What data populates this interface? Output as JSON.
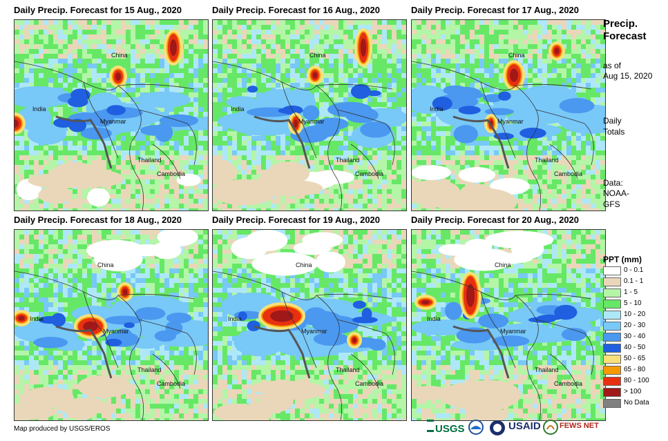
{
  "panels": [
    {
      "title": "Daily Precip. Forecast for 15 Aug., 2020"
    },
    {
      "title": "Daily Precip. Forecast for 16 Aug., 2020"
    },
    {
      "title": "Daily Precip. Forecast for 17 Aug., 2020"
    },
    {
      "title": "Daily Precip. Forecast for 18 Aug., 2020"
    },
    {
      "title": "Daily Precip. Forecast for 19 Aug., 2020"
    },
    {
      "title": "Daily Precip. Forecast for 20 Aug., 2020"
    }
  ],
  "places": {
    "china": "China",
    "india": "India",
    "myanmar": "Myanmar",
    "thailand": "Thailand",
    "cambodia": "Cambodia"
  },
  "side": {
    "title": "Precip. Forecast",
    "as_of": "as of",
    "date": "Aug 15, 2020",
    "daily": "Daily",
    "totals": "Totals",
    "data_label": "Data:",
    "data_src1": "NOAA-",
    "data_src2": "GFS"
  },
  "legend": {
    "title": "PPT (mm)",
    "classes": [
      {
        "label": "0 - 0.1",
        "color": "#ffffff"
      },
      {
        "label": "0.1 - 1",
        "color": "#ead7b9"
      },
      {
        "label": "1 - 5",
        "color": "#b4f5a8"
      },
      {
        "label": "5 - 10",
        "color": "#66e866"
      },
      {
        "label": "10 - 20",
        "color": "#aee8f8"
      },
      {
        "label": "20 - 30",
        "color": "#78c8f8"
      },
      {
        "label": "30 - 40",
        "color": "#4a98ef"
      },
      {
        "label": "40 - 50",
        "color": "#1f5fe0"
      },
      {
        "label": "50 - 65",
        "color": "#f8e07a"
      },
      {
        "label": "65 - 80",
        "color": "#f59a00"
      },
      {
        "label": "80 - 100",
        "color": "#e83010"
      },
      {
        "label": "> 100",
        "color": "#a01818"
      },
      {
        "label": "No Data",
        "color": "#808080"
      }
    ]
  },
  "credit": "Map produced by USGS/EROS",
  "logos": {
    "usgs": "USGS",
    "usaid": "USAID",
    "fewsnet": "FEWS NET"
  }
}
